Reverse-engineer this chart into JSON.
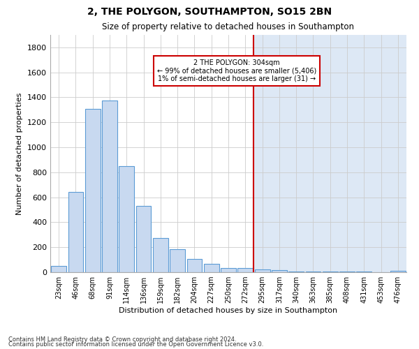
{
  "title": "2, THE POLYGON, SOUTHAMPTON, SO15 2BN",
  "subtitle": "Size of property relative to detached houses in Southampton",
  "xlabel": "Distribution of detached houses by size in Southampton",
  "ylabel": "Number of detached properties",
  "footnote1": "Contains HM Land Registry data © Crown copyright and database right 2024.",
  "footnote2": "Contains public sector information licensed under the Open Government Licence v3.0.",
  "bin_labels": [
    "23sqm",
    "46sqm",
    "68sqm",
    "91sqm",
    "114sqm",
    "136sqm",
    "159sqm",
    "182sqm",
    "204sqm",
    "227sqm",
    "250sqm",
    "272sqm",
    "295sqm",
    "317sqm",
    "340sqm",
    "363sqm",
    "385sqm",
    "408sqm",
    "431sqm",
    "453sqm",
    "476sqm"
  ],
  "bar_values": [
    50,
    640,
    1310,
    1375,
    850,
    530,
    275,
    185,
    105,
    65,
    35,
    35,
    25,
    15,
    5,
    5,
    5,
    5,
    5,
    0,
    10
  ],
  "bar_color": "#c8d9f0",
  "bar_edge_color": "#5b9bd5",
  "bar_edge_width": 0.8,
  "grid_color": "#cccccc",
  "bg_color_left": "#ffffff",
  "bg_color_right": "#dde8f5",
  "vline_bin": 12,
  "vline_color": "#cc0000",
  "annotation_title": "2 THE POLYGON: 304sqm",
  "annotation_line1": "← 99% of detached houses are smaller (5,406)",
  "annotation_line2": "1% of semi-detached houses are larger (31) →",
  "annotation_box_color": "#cc0000",
  "ylim": [
    0,
    1900
  ],
  "yticks": [
    0,
    200,
    400,
    600,
    800,
    1000,
    1200,
    1400,
    1600,
    1800
  ]
}
